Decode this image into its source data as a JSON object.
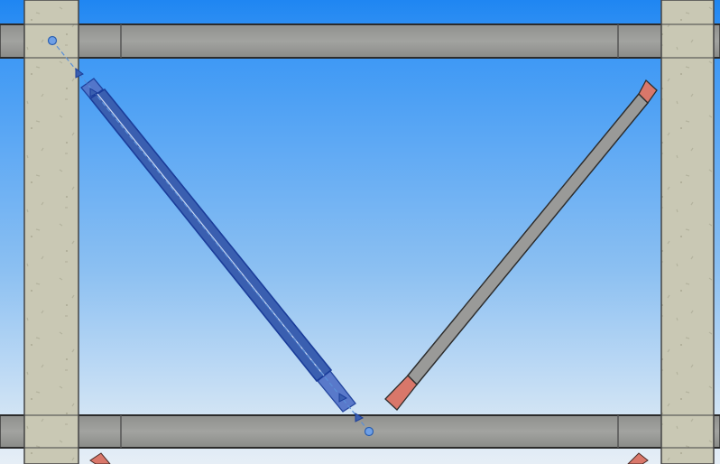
{
  "view": {
    "colors": {
      "sky_top": "#1f86f2",
      "sky_bottom": "#e6eef6",
      "column_concrete": "#c9c8b4",
      "beam_steel": "#9c9d9a",
      "brace_selected": "#3a5fb0",
      "brace_unselected": "#9a9a98",
      "brace_end_plate": "#d9776a",
      "grip_point": "#5a8fd8"
    },
    "elements": {
      "columns": [
        "left-concrete-column",
        "right-concrete-column"
      ],
      "beams": [
        "top-steel-beam",
        "bottom-steel-beam"
      ],
      "braces": [
        {
          "name": "brace-left",
          "state": "selected"
        },
        {
          "name": "brace-right",
          "state": "unselected"
        }
      ]
    }
  }
}
